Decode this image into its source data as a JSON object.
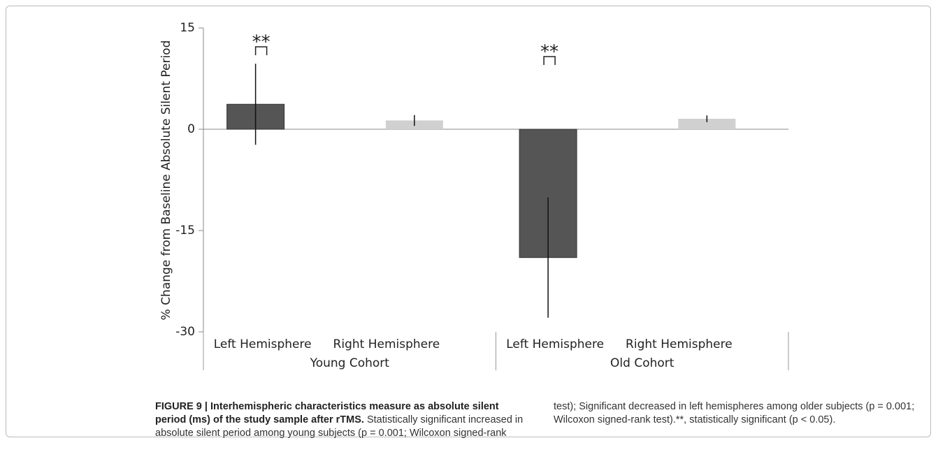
{
  "chart_data": {
    "type": "bar",
    "ylabel": "% Change from Baseline Absolute Silent Period",
    "categories": [
      "Young Cohort",
      "Old Cohort"
    ],
    "series": [
      {
        "name": "Left Hemisphere",
        "color": "#555555",
        "values": [
          3.7,
          -19.0
        ],
        "errors": [
          6.0,
          8.9
        ]
      },
      {
        "name": "Right Hemisphere",
        "color": "#d0d0d0",
        "values": [
          1.3,
          1.55
        ],
        "errors": [
          0.8,
          0.5
        ]
      }
    ],
    "annotations": [
      "**",
      "**"
    ],
    "ylim": [
      -30,
      15
    ],
    "yticks": [
      -30,
      -15,
      0,
      15
    ]
  },
  "caption": {
    "title": "FIGURE 9 | Interhemispheric characteristics measure as absolute silent period (ms) of the study sample after rTMS.",
    "text": "Statistically significant increased in absolute silent period among young subjects (p = 0.001; Wilcoxon signed-rank test); Significant decreased in left hemispheres among older subjects (p = 0.001; Wilcoxon signed-rank test).**, statistically significant (p < 0.05)."
  }
}
